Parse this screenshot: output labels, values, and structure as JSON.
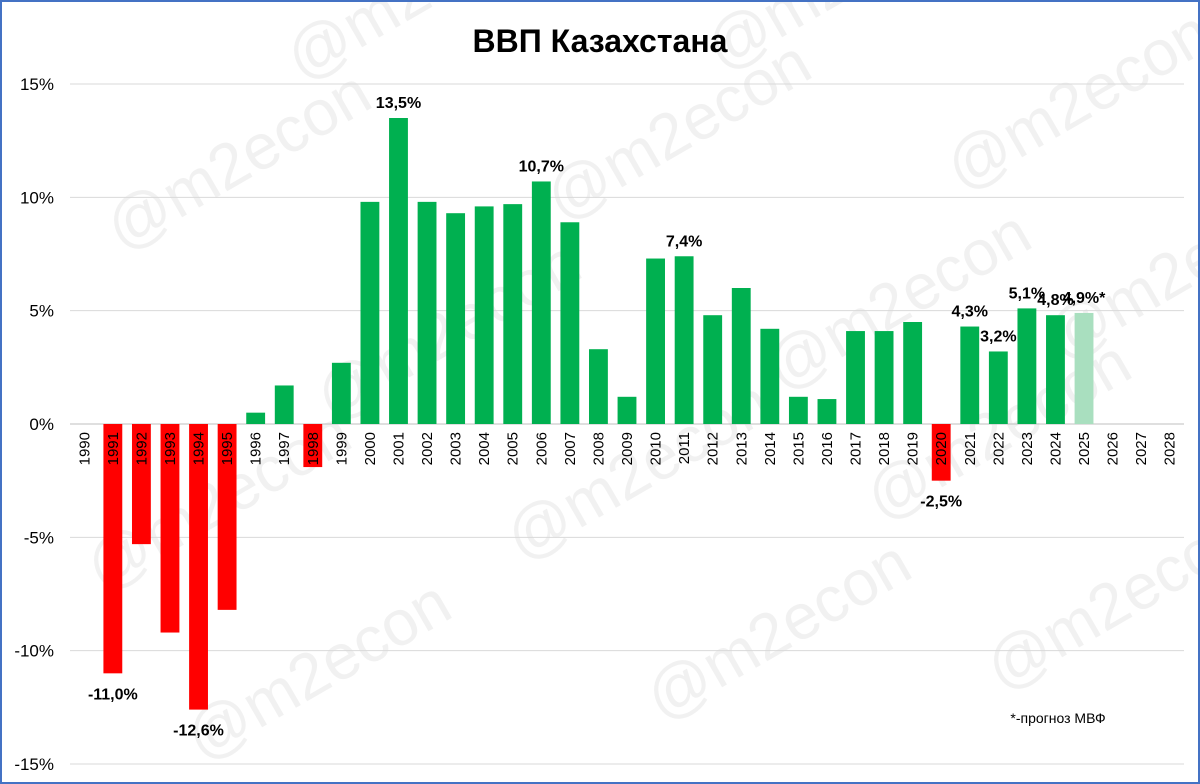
{
  "watermark": "@m2econ",
  "colors": {
    "positive": "#00b050",
    "negative": "#ff0000",
    "forecast": "#a9dfbf",
    "grid": "#d9d9d9",
    "frame": "#4472c4"
  },
  "chart_data": {
    "type": "bar",
    "title": "ВВП Казахстана",
    "xlabel": "",
    "ylabel": "",
    "ylim": [
      -15,
      15
    ],
    "yticks": [
      15,
      10,
      5,
      0,
      -5,
      -10,
      -15
    ],
    "ytick_labels": [
      "15%",
      "10%",
      "5%",
      "0%",
      "-5%",
      "-10%",
      "-15%"
    ],
    "grid": true,
    "legend": "none",
    "categories": [
      "1990",
      "1991",
      "1992",
      "1993",
      "1994",
      "1995",
      "1996",
      "1997",
      "1998",
      "1999",
      "2000",
      "2001",
      "2002",
      "2003",
      "2004",
      "2005",
      "2006",
      "2007",
      "2008",
      "2009",
      "2010",
      "2011",
      "2012",
      "2013",
      "2014",
      "2015",
      "2016",
      "2017",
      "2018",
      "2019",
      "2020",
      "2021",
      "2022",
      "2023",
      "2024",
      "2025",
      "2026",
      "2027",
      "2028"
    ],
    "values": [
      null,
      -11.0,
      -5.3,
      -9.2,
      -12.6,
      -8.2,
      0.5,
      1.7,
      -1.9,
      2.7,
      9.8,
      13.5,
      9.8,
      9.3,
      9.6,
      9.7,
      10.7,
      8.9,
      3.3,
      1.2,
      7.3,
      7.4,
      4.8,
      6.0,
      4.2,
      1.2,
      1.1,
      4.1,
      4.1,
      4.5,
      -2.5,
      4.3,
      3.2,
      5.1,
      4.8,
      4.9,
      null,
      null,
      null
    ],
    "forecast_categories": [
      "2025"
    ],
    "data_labels": [
      {
        "category": "1991",
        "text": "-11,0%"
      },
      {
        "category": "1994",
        "text": "-12,6%"
      },
      {
        "category": "2001",
        "text": "13,5%"
      },
      {
        "category": "2006",
        "text": "10,7%"
      },
      {
        "category": "2011",
        "text": "7,4%"
      },
      {
        "category": "2020",
        "text": "-2,5%"
      },
      {
        "category": "2021",
        "text": "4,3%"
      },
      {
        "category": "2022",
        "text": "3,2%"
      },
      {
        "category": "2023",
        "text": "5,1%"
      },
      {
        "category": "2024",
        "text": "4,8%"
      },
      {
        "category": "2025",
        "text": "4,9%*"
      }
    ],
    "annotation": "*-прогноз МВФ"
  }
}
